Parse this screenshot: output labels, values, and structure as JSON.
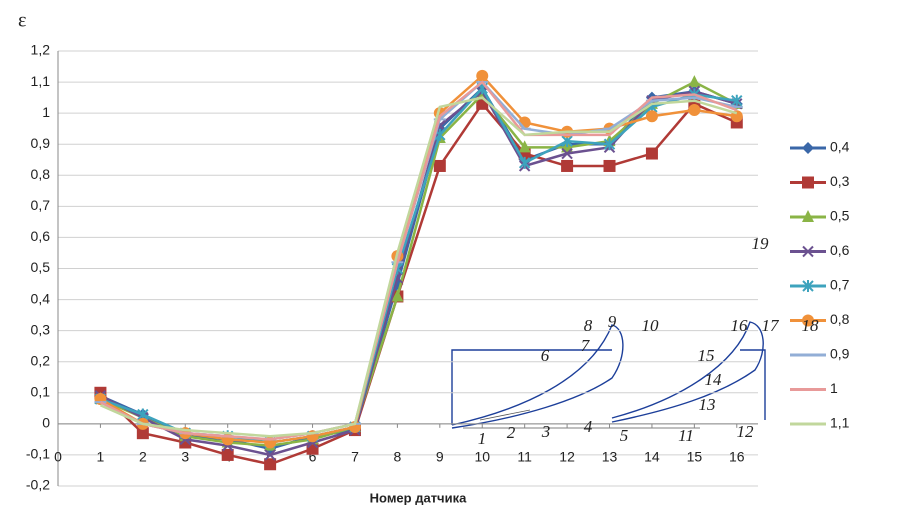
{
  "chart_data": {
    "type": "line",
    "y_label": "ε",
    "x_label": "Номер датчика",
    "x": [
      1,
      2,
      3,
      4,
      5,
      6,
      7,
      8,
      9,
      10,
      11,
      12,
      13,
      14,
      15,
      16
    ],
    "xlim": [
      0,
      16.5
    ],
    "xticks": [
      0,
      1,
      2,
      3,
      4,
      5,
      6,
      7,
      8,
      9,
      10,
      11,
      12,
      13,
      14,
      15,
      16
    ],
    "ylim": [
      -0.2,
      1.2
    ],
    "yticks": [
      {
        "value": -0.2,
        "label": "-0,2"
      },
      {
        "value": -0.1,
        "label": "-0,1"
      },
      0,
      {
        "value": 0.1,
        "label": "0,1"
      },
      {
        "value": 0.2,
        "label": "0,2"
      },
      {
        "value": 0.3,
        "label": "0,3"
      },
      {
        "value": 0.4,
        "label": "0,4"
      },
      {
        "value": 0.5,
        "label": "0,5"
      },
      {
        "value": 0.6,
        "label": "0,6"
      },
      {
        "value": 0.7,
        "label": "0,7"
      },
      {
        "value": 0.8,
        "label": "0,8"
      },
      {
        "value": 0.9,
        "label": "0,9"
      },
      1,
      {
        "value": 1.1,
        "label": "1,1"
      },
      {
        "value": 1.2,
        "label": "1,2"
      }
    ],
    "grid": true,
    "legend": "right",
    "series": [
      {
        "name": "0,4",
        "color": "#3a67a8",
        "marker": "diamond",
        "values": [
          0.09,
          0.03,
          -0.04,
          -0.05,
          -0.08,
          -0.04,
          -0.02,
          0.45,
          0.95,
          1.08,
          0.85,
          0.9,
          0.9,
          1.05,
          1.07,
          1.03
        ]
      },
      {
        "name": "0,3",
        "color": "#b03a36",
        "marker": "square",
        "values": [
          0.1,
          -0.03,
          -0.06,
          -0.1,
          -0.13,
          -0.08,
          -0.02,
          0.41,
          0.83,
          1.03,
          0.87,
          0.83,
          0.83,
          0.87,
          1.03,
          0.97
        ]
      },
      {
        "name": "0,5",
        "color": "#8ab446",
        "marker": "triangle",
        "values": [
          0.08,
          0.02,
          -0.04,
          -0.06,
          -0.07,
          -0.05,
          -0.01,
          0.41,
          0.92,
          1.06,
          0.89,
          0.89,
          0.91,
          1.03,
          1.1,
          1.03
        ]
      },
      {
        "name": "0,6",
        "color": "#6b5190",
        "marker": "x",
        "values": [
          0.09,
          0.02,
          -0.05,
          -0.07,
          -0.1,
          -0.06,
          -0.02,
          0.47,
          0.96,
          1.07,
          0.83,
          0.87,
          0.89,
          1.04,
          1.07,
          1.03
        ]
      },
      {
        "name": "0,7",
        "color": "#3da3bd",
        "marker": "star",
        "values": [
          0.08,
          0.03,
          -0.03,
          -0.04,
          -0.06,
          -0.04,
          -0.01,
          0.5,
          0.93,
          1.08,
          0.84,
          0.91,
          0.9,
          1.02,
          1.06,
          1.04
        ]
      },
      {
        "name": "0,8",
        "color": "#f0913a",
        "marker": "circle",
        "values": [
          0.08,
          0.0,
          -0.03,
          -0.05,
          -0.06,
          -0.04,
          -0.01,
          0.54,
          1.0,
          1.12,
          0.97,
          0.94,
          0.95,
          0.99,
          1.01,
          0.99
        ]
      },
      {
        "name": "0,9",
        "color": "#92aed6",
        "marker": "plus",
        "values": [
          0.07,
          0.0,
          -0.03,
          -0.04,
          -0.05,
          -0.03,
          0,
          0.52,
          0.98,
          1.1,
          0.95,
          0.93,
          0.95,
          1.04,
          1.05,
          1.02
        ]
      },
      {
        "name": "1",
        "color": "#e89a99",
        "marker": "none",
        "values": [
          0.07,
          0.0,
          -0.03,
          -0.04,
          -0.05,
          -0.03,
          0,
          0.52,
          0.99,
          1.1,
          0.93,
          0.93,
          0.93,
          1.05,
          1.06,
          1.01
        ]
      },
      {
        "name": "1,1",
        "color": "#c1d79c",
        "marker": "none",
        "values": [
          0.06,
          0.0,
          -0.02,
          -0.03,
          -0.04,
          -0.03,
          0,
          0.55,
          1.02,
          1.05,
          0.93,
          0.94,
          0.94,
          1.03,
          1.04,
          1.0
        ]
      }
    ],
    "annotations": [
      "1",
      "2",
      "3",
      "4",
      "5",
      "6",
      "7",
      "8",
      "9",
      "10",
      "11",
      "12",
      "13",
      "14",
      "15",
      "16",
      "17",
      "18",
      "19"
    ]
  }
}
